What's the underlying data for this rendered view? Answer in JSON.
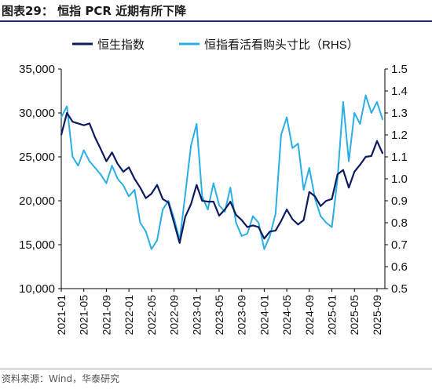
{
  "header": {
    "title": "图表29：  恒指 PCR 近期有所下降"
  },
  "footer": {
    "source": "资料来源：Wind，华泰研究"
  },
  "chart_data": {
    "type": "line",
    "title": "",
    "colors": {
      "left": "#0d1b5e",
      "right": "#29aee6",
      "axis": "#000000"
    },
    "legend_position": "top",
    "grid": false,
    "x_ticks": [
      "2021-01",
      "2021-05",
      "2021-09",
      "2022-01",
      "2022-05",
      "2022-09",
      "2023-01",
      "2023-05",
      "2023-09",
      "2024-01",
      "2024-05",
      "2024-09",
      "2025-01",
      "2025-05",
      "2025-09"
    ],
    "x_range": [
      "2021-01",
      "2025-10"
    ],
    "y_left": {
      "label": "",
      "min": 10000,
      "max": 35000,
      "ticks": [
        "10,000",
        "15,000",
        "20,000",
        "25,000",
        "30,000",
        "35,000"
      ]
    },
    "y_right": {
      "label": "",
      "min": 0.5,
      "max": 1.5,
      "ticks": [
        "0.5",
        "0.6",
        "0.7",
        "0.8",
        "0.9",
        "1.0",
        "1.1",
        "1.2",
        "1.3",
        "1.4",
        "1.5"
      ]
    },
    "series": [
      {
        "name": "恒生指数",
        "axis": "left",
        "points": [
          [
            "2021-01",
            27500
          ],
          [
            "2021-02",
            30000
          ],
          [
            "2021-03",
            29000
          ],
          [
            "2021-04",
            28800
          ],
          [
            "2021-05",
            28600
          ],
          [
            "2021-06",
            28800
          ],
          [
            "2021-07",
            27200
          ],
          [
            "2021-08",
            25900
          ],
          [
            "2021-09",
            24500
          ],
          [
            "2021-10",
            25500
          ],
          [
            "2021-11",
            24200
          ],
          [
            "2021-12",
            23300
          ],
          [
            "2022-01",
            23800
          ],
          [
            "2022-02",
            22500
          ],
          [
            "2022-03",
            21500
          ],
          [
            "2022-04",
            20300
          ],
          [
            "2022-05",
            20800
          ],
          [
            "2022-06",
            21800
          ],
          [
            "2022-07",
            20200
          ],
          [
            "2022-08",
            19800
          ],
          [
            "2022-09",
            17500
          ],
          [
            "2022-10",
            15200
          ],
          [
            "2022-11",
            18200
          ],
          [
            "2022-12",
            19600
          ],
          [
            "2023-01",
            21800
          ],
          [
            "2023-02",
            20000
          ],
          [
            "2023-03",
            19900
          ],
          [
            "2023-04",
            19900
          ],
          [
            "2023-05",
            18300
          ],
          [
            "2023-06",
            19000
          ],
          [
            "2023-07",
            19900
          ],
          [
            "2023-08",
            18400
          ],
          [
            "2023-09",
            17800
          ],
          [
            "2023-10",
            17000
          ],
          [
            "2023-11",
            17200
          ],
          [
            "2023-12",
            17000
          ],
          [
            "2024-01",
            15700
          ],
          [
            "2024-02",
            16500
          ],
          [
            "2024-03",
            16600
          ],
          [
            "2024-04",
            17700
          ],
          [
            "2024-05",
            19000
          ],
          [
            "2024-06",
            17900
          ],
          [
            "2024-07",
            17300
          ],
          [
            "2024-08",
            17800
          ],
          [
            "2024-09",
            21000
          ],
          [
            "2024-10",
            20500
          ],
          [
            "2024-11",
            19400
          ],
          [
            "2024-12",
            20000
          ],
          [
            "2025-01",
            20200
          ],
          [
            "2025-02",
            23000
          ],
          [
            "2025-03",
            23500
          ],
          [
            "2025-04",
            21500
          ],
          [
            "2025-05",
            23300
          ],
          [
            "2025-06",
            24100
          ],
          [
            "2025-07",
            25000
          ],
          [
            "2025-08",
            25100
          ],
          [
            "2025-09",
            26800
          ],
          [
            "2025-10",
            25400
          ]
        ]
      },
      {
        "name": "恒指看活看购头寸比（RHS）",
        "axis": "right",
        "points": [
          [
            "2021-01",
            1.28
          ],
          [
            "2021-02",
            1.33
          ],
          [
            "2021-03",
            1.1
          ],
          [
            "2021-04",
            1.06
          ],
          [
            "2021-05",
            1.13
          ],
          [
            "2021-06",
            1.08
          ],
          [
            "2021-07",
            1.05
          ],
          [
            "2021-08",
            1.02
          ],
          [
            "2021-09",
            0.98
          ],
          [
            "2021-10",
            1.06
          ],
          [
            "2021-11",
            1.0
          ],
          [
            "2021-12",
            0.97
          ],
          [
            "2022-01",
            0.92
          ],
          [
            "2022-02",
            0.95
          ],
          [
            "2022-03",
            0.8
          ],
          [
            "2022-04",
            0.76
          ],
          [
            "2022-05",
            0.68
          ],
          [
            "2022-06",
            0.72
          ],
          [
            "2022-07",
            0.86
          ],
          [
            "2022-08",
            0.9
          ],
          [
            "2022-09",
            0.82
          ],
          [
            "2022-10",
            0.72
          ],
          [
            "2022-11",
            0.93
          ],
          [
            "2022-12",
            1.15
          ],
          [
            "2023-01",
            1.25
          ],
          [
            "2023-02",
            0.92
          ],
          [
            "2023-03",
            0.86
          ],
          [
            "2023-04",
            0.98
          ],
          [
            "2023-05",
            0.88
          ],
          [
            "2023-06",
            0.85
          ],
          [
            "2023-07",
            0.96
          ],
          [
            "2023-08",
            0.8
          ],
          [
            "2023-09",
            0.74
          ],
          [
            "2023-10",
            0.75
          ],
          [
            "2023-11",
            0.83
          ],
          [
            "2023-12",
            0.8
          ],
          [
            "2024-01",
            0.68
          ],
          [
            "2024-02",
            0.74
          ],
          [
            "2024-03",
            0.84
          ],
          [
            "2024-04",
            1.2
          ],
          [
            "2024-05",
            1.28
          ],
          [
            "2024-06",
            1.14
          ],
          [
            "2024-07",
            1.16
          ],
          [
            "2024-08",
            0.95
          ],
          [
            "2024-09",
            1.05
          ],
          [
            "2024-10",
            0.91
          ],
          [
            "2024-11",
            0.83
          ],
          [
            "2024-12",
            0.8
          ],
          [
            "2025-01",
            0.78
          ],
          [
            "2025-02",
            1.0
          ],
          [
            "2025-03",
            1.35
          ],
          [
            "2025-04",
            1.08
          ],
          [
            "2025-05",
            1.3
          ],
          [
            "2025-06",
            1.25
          ],
          [
            "2025-07",
            1.38
          ],
          [
            "2025-08",
            1.3
          ],
          [
            "2025-09",
            1.35
          ],
          [
            "2025-10",
            1.27
          ]
        ]
      }
    ]
  }
}
